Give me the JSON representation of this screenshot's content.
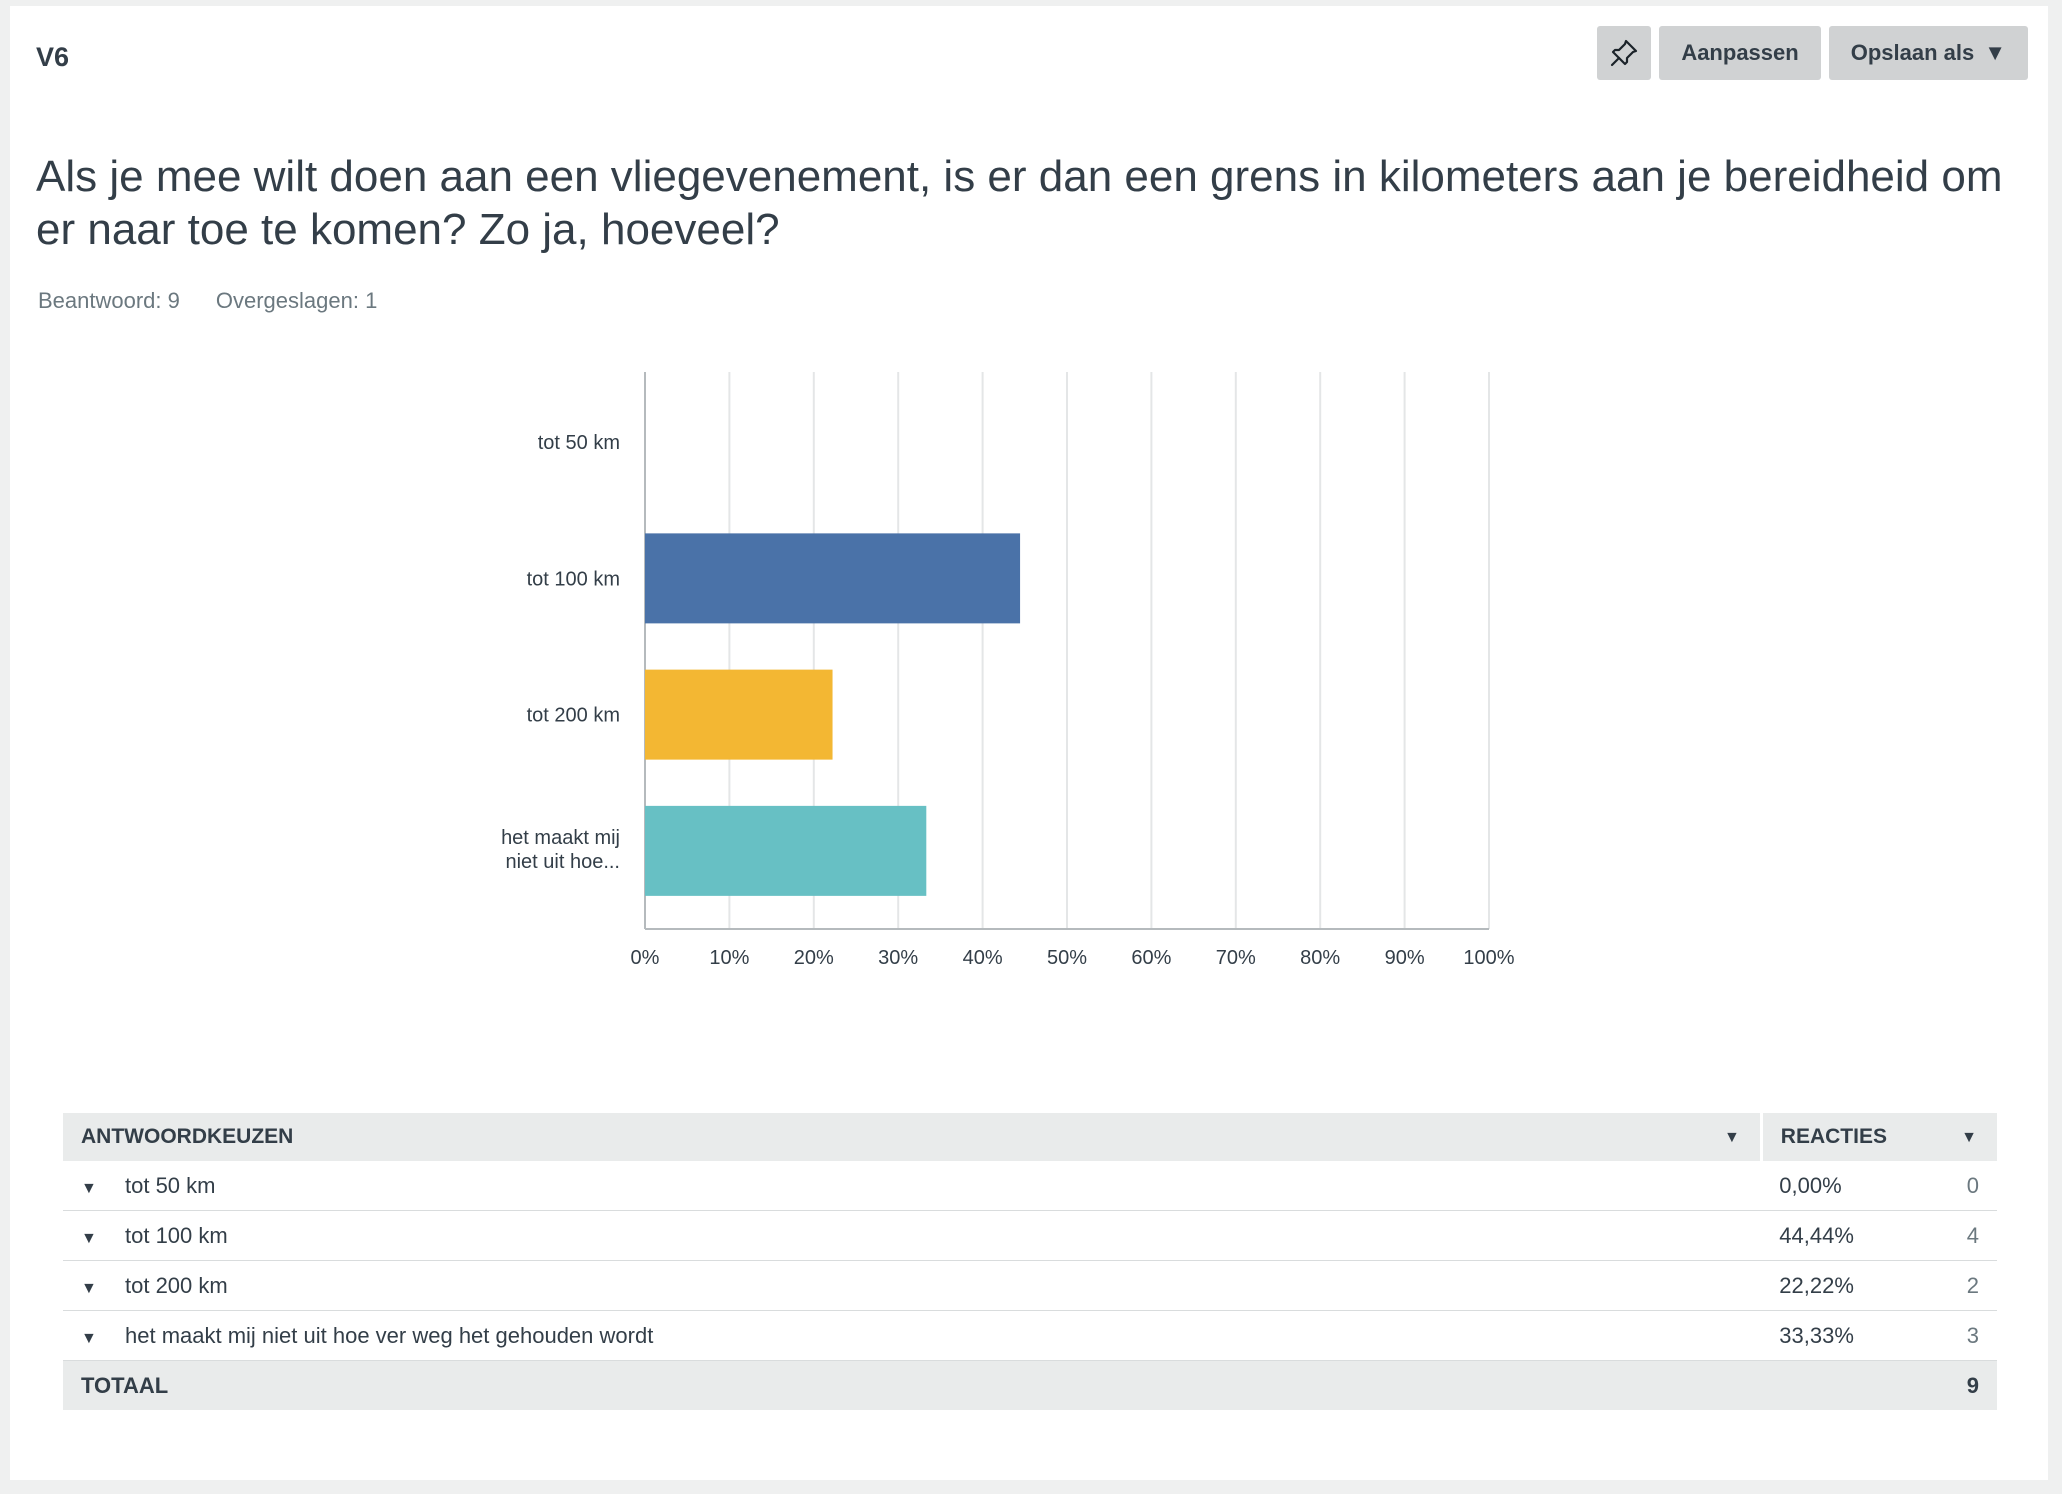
{
  "question_number": "V6",
  "toolbar": {
    "pin_icon": "pin-icon",
    "customize_label": "Aanpassen",
    "save_as_label": "Opslaan als",
    "save_as_caret": "▼"
  },
  "question_title": "Als je mee wilt doen aan een vliegevenement, is er dan een grens in kilometers aan je bereidheid om er naar toe te komen? Zo ja, hoeveel?",
  "stats": {
    "answered": "Beantwoord: 9",
    "skipped": "Overgeslagen: 1"
  },
  "chart_data": {
    "type": "bar",
    "orientation": "horizontal",
    "categories": [
      "tot 50 km",
      "tot 100 km",
      "tot 200 km",
      "het maakt mij niet uit hoe..."
    ],
    "values": [
      0,
      44.44,
      22.22,
      33.33
    ],
    "colors": [
      "#4a72a8",
      "#4a72a8",
      "#f3b733",
      "#67c0c4"
    ],
    "xlim": [
      0,
      100
    ],
    "xticks": [
      "0%",
      "10%",
      "20%",
      "30%",
      "40%",
      "50%",
      "60%",
      "70%",
      "80%",
      "90%",
      "100%"
    ],
    "grid": true
  },
  "table": {
    "header_choice": "ANTWOORDKEUZEN",
    "header_responses": "REACTIES",
    "rows": [
      {
        "choice": "tot 50 km",
        "percent": "0,00%",
        "count": "0"
      },
      {
        "choice": "tot 100 km",
        "percent": "44,44%",
        "count": "4"
      },
      {
        "choice": "tot 200 km",
        "percent": "22,22%",
        "count": "2"
      },
      {
        "choice": "het maakt mij niet uit hoe ver weg het gehouden wordt",
        "percent": "33,33%",
        "count": "3"
      }
    ],
    "total_label": "TOTAAL",
    "total_count": "9"
  }
}
